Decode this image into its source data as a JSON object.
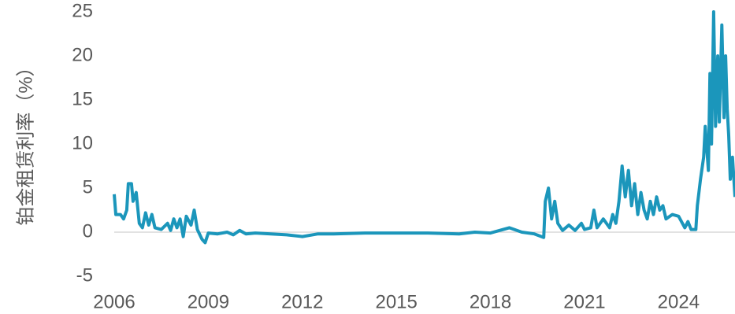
{
  "chart_data": {
    "type": "line",
    "y_label": "铂金租赁利率（%）",
    "color": "#1b96bb",
    "x": [
      2006.0,
      2006.05,
      2006.2,
      2006.3,
      2006.4,
      2006.45,
      2006.55,
      2006.6,
      2006.7,
      2006.8,
      2006.9,
      2007.0,
      2007.1,
      2007.2,
      2007.3,
      2007.5,
      2007.7,
      2007.8,
      2007.9,
      2008.0,
      2008.1,
      2008.2,
      2008.3,
      2008.45,
      2008.55,
      2008.65,
      2008.8,
      2008.9,
      2009.0,
      2009.3,
      2009.6,
      2009.8,
      2010.0,
      2010.2,
      2010.5,
      2011.0,
      2011.5,
      2012.0,
      2012.5,
      2013.0,
      2014.0,
      2015.0,
      2016.0,
      2017.0,
      2017.5,
      2018.0,
      2018.6,
      2019.0,
      2019.4,
      2019.7,
      2019.75,
      2019.85,
      2019.95,
      2020.05,
      2020.15,
      2020.3,
      2020.5,
      2020.7,
      2020.9,
      2021.0,
      2021.2,
      2021.3,
      2021.4,
      2021.6,
      2021.8,
      2021.9,
      2022.0,
      2022.1,
      2022.2,
      2022.3,
      2022.4,
      2022.5,
      2022.6,
      2022.7,
      2022.8,
      2022.9,
      2023.0,
      2023.1,
      2023.2,
      2023.3,
      2023.4,
      2023.5,
      2023.6,
      2023.8,
      2024.0,
      2024.2,
      2024.3,
      2024.4,
      2024.55,
      2024.6,
      2024.7,
      2024.8,
      2024.85,
      2024.9,
      2024.95,
      2025.0,
      2025.05,
      2025.12,
      2025.18,
      2025.25,
      2025.3,
      2025.38,
      2025.45,
      2025.5,
      2025.55,
      2025.6,
      2025.65,
      2025.72,
      2025.8
    ],
    "values": [
      4.3,
      2.0,
      2.0,
      1.5,
      2.5,
      5.5,
      5.5,
      3.5,
      4.5,
      1.0,
      0.5,
      2.2,
      0.8,
      2.0,
      0.5,
      0.3,
      1.0,
      0.2,
      1.5,
      0.5,
      1.5,
      -0.5,
      1.8,
      0.8,
      2.5,
      0.3,
      -0.8,
      -1.2,
      -0.1,
      -0.2,
      0,
      -0.3,
      0.2,
      -0.2,
      -0.1,
      -0.2,
      -0.3,
      -0.5,
      -0.2,
      -0.2,
      -0.1,
      -0.1,
      -0.1,
      -0.2,
      0,
      -0.1,
      0.5,
      0,
      -0.2,
      -0.6,
      3.5,
      5.0,
      1.5,
      3.5,
      1.0,
      0.2,
      0.8,
      0.2,
      1.0,
      0.3,
      0.5,
      2.5,
      0.5,
      1.5,
      0.5,
      2.0,
      1.0,
      3.5,
      7.5,
      4.0,
      7.0,
      3.0,
      5.5,
      2.0,
      4.5,
      2.5,
      1.5,
      3.5,
      2.0,
      4.0,
      2.5,
      3.0,
      1.5,
      2.0,
      1.8,
      0.5,
      1.2,
      0.3,
      0.3,
      3.0,
      6.0,
      8.5,
      12.0,
      9.5,
      7.0,
      18.0,
      10.0,
      25.0,
      12.0,
      20.0,
      12.5,
      23.5,
      13.0,
      20.0,
      14.0,
      11.0,
      6.0,
      8.5,
      4.0
    ],
    "xlim": [
      2006,
      2025.8
    ],
    "xticks": [
      2006,
      2009,
      2012,
      2015,
      2018,
      2021,
      2024
    ],
    "ylim": [
      -5,
      25
    ],
    "yticks": [
      -5,
      0,
      5,
      10,
      15,
      20,
      25
    ]
  }
}
